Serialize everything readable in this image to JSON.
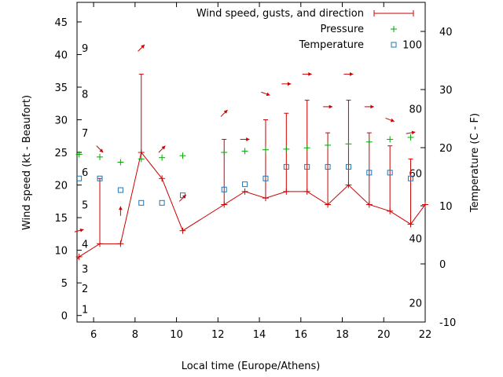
{
  "chart_data": {
    "type": "line",
    "xlabel": "Local time (Europe/Athens)",
    "ylabel_left": "Wind speed (kt - Beaufort)",
    "ylabel_right": "Temperature (C - F)",
    "x_range": [
      5.2,
      22
    ],
    "y_left_range": [
      -1,
      48
    ],
    "y_right_range": [
      -10,
      45
    ],
    "x_ticks": [
      "6",
      "8",
      "10",
      "12",
      "14",
      "16",
      "18",
      "20",
      "22"
    ],
    "y_left_ticks": [
      "0",
      "5",
      "10",
      "15",
      "20",
      "25",
      "30",
      "35",
      "40",
      "45"
    ],
    "y_right_ticks": [
      "-10",
      "0",
      "10",
      "20",
      "30",
      "40"
    ],
    "beaufort_labels": [
      {
        "label": "1",
        "wind": 1
      },
      {
        "label": "2",
        "wind": 4.2
      },
      {
        "label": "3",
        "wind": 7.2
      },
      {
        "label": "4",
        "wind": 11
      },
      {
        "label": "5",
        "wind": 17
      },
      {
        "label": "6",
        "wind": 22
      },
      {
        "label": "7",
        "wind": 28
      },
      {
        "label": "8",
        "wind": 34
      },
      {
        "label": "9",
        "wind": 41
      }
    ],
    "fahrenheit_labels": [
      {
        "label": "20",
        "temp": -6.7
      },
      {
        "label": "40",
        "temp": 4.4
      },
      {
        "label": "60",
        "temp": 15.6
      },
      {
        "label": "80",
        "temp": 26.7
      },
      {
        "label": "100",
        "temp": 37.8
      }
    ],
    "legend": [
      {
        "label": "Wind speed, gusts, and direction",
        "marker": "errorbar"
      },
      {
        "label": "Pressure",
        "marker": "plus"
      },
      {
        "label": "Temperature",
        "marker": "square"
      }
    ],
    "colors": {
      "wind": "#cc0000",
      "pressure": "#00aa00",
      "temperature": "#1f77b4"
    },
    "series": [
      {
        "name": "Wind speed, gusts, and direction",
        "axis": "left",
        "x": [
          4.8,
          5.3,
          6.3,
          7.3,
          8.3,
          9.3,
          10.3,
          12.3,
          13.3,
          14.3,
          15.3,
          16.3,
          17.3,
          18.3,
          19.3,
          20.3,
          21.3,
          22.0
        ],
        "y": [
          7,
          9,
          11,
          11,
          25,
          21,
          13,
          17,
          19,
          18,
          19,
          19,
          17,
          20,
          17,
          16,
          14,
          17
        ],
        "gust": [
          null,
          null,
          21,
          null,
          37,
          null,
          null,
          27,
          null,
          30,
          31,
          33,
          28,
          33,
          28,
          26,
          24,
          null
        ]
      },
      {
        "name": "Pressure",
        "axis": "left",
        "x": [
          5.3,
          6.3,
          7.3,
          8.3,
          9.3,
          10.3,
          12.3,
          13.3,
          14.3,
          15.3,
          16.3,
          17.3,
          18.3,
          19.3,
          20.3,
          21.3
        ],
        "y": [
          24.7,
          24.3,
          23.5,
          24,
          24.2,
          24.5,
          25,
          25.2,
          25.4,
          25.5,
          25.7,
          26.1,
          26.3,
          26.6,
          27,
          27.3
        ]
      },
      {
        "name": "Temperature",
        "axis": "right",
        "x": [
          5.3,
          6.3,
          7.3,
          8.3,
          9.3,
          10.3,
          12.3,
          13.3,
          14.3,
          15.3,
          16.3,
          17.3,
          18.3,
          19.3,
          20.3,
          21.3
        ],
        "y": [
          14.7,
          14.7,
          12.7,
          10.5,
          10.5,
          11.8,
          12.8,
          13.7,
          14.7,
          16.7,
          16.7,
          16.7,
          16.7,
          15.7,
          15.7,
          14.7
        ]
      },
      {
        "name": "Wind direction",
        "axis": "left",
        "x": [
          5.3,
          6.3,
          7.3,
          8.3,
          9.3,
          10.3,
          12.3,
          13.3,
          14.3,
          15.3,
          16.3,
          17.3,
          18.3,
          19.3,
          20.3,
          21.3
        ],
        "y": [
          13,
          25.5,
          16,
          41,
          25.5,
          18,
          31,
          27,
          34,
          35.5,
          37,
          32,
          37,
          32,
          30,
          28
        ],
        "direction_deg": [
          255,
          315,
          180,
          225,
          225,
          225,
          225,
          270,
          290,
          270,
          270,
          270,
          270,
          270,
          290,
          260
        ]
      }
    ]
  }
}
